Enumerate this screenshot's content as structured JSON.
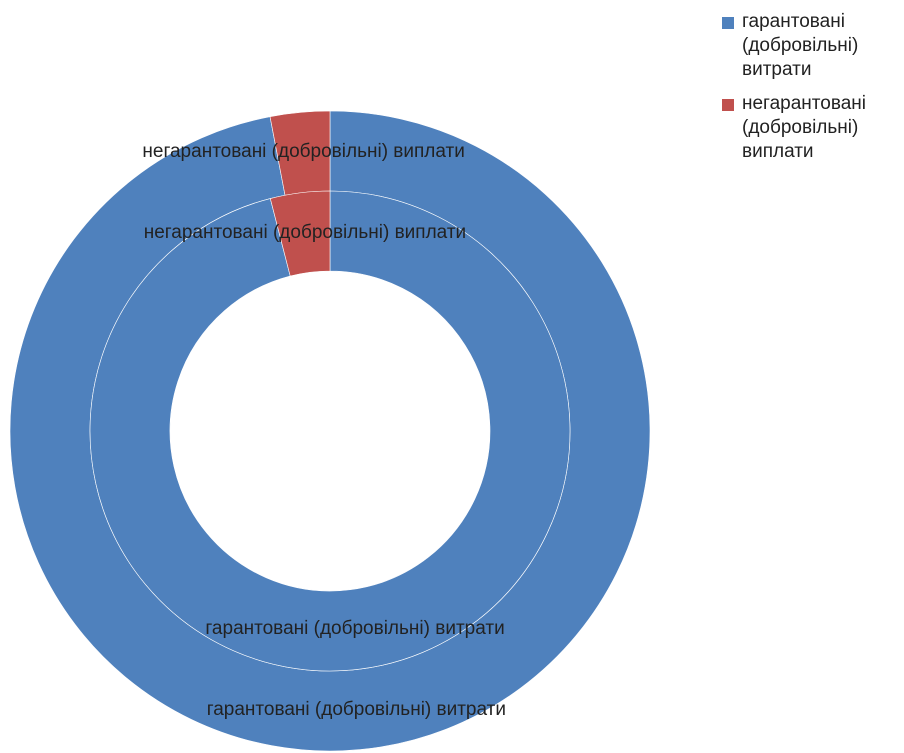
{
  "chart_data": {
    "type": "doughnut",
    "categories": [
      "гарантовані (добровільні) витрати",
      "негарантовані (добровільні) виплати"
    ],
    "colors": [
      "#4f81bd",
      "#c0504d"
    ],
    "series": [
      {
        "values": [
          97,
          3
        ]
      },
      {
        "values": [
          96,
          4
        ]
      }
    ],
    "legend": "top-right"
  }
}
